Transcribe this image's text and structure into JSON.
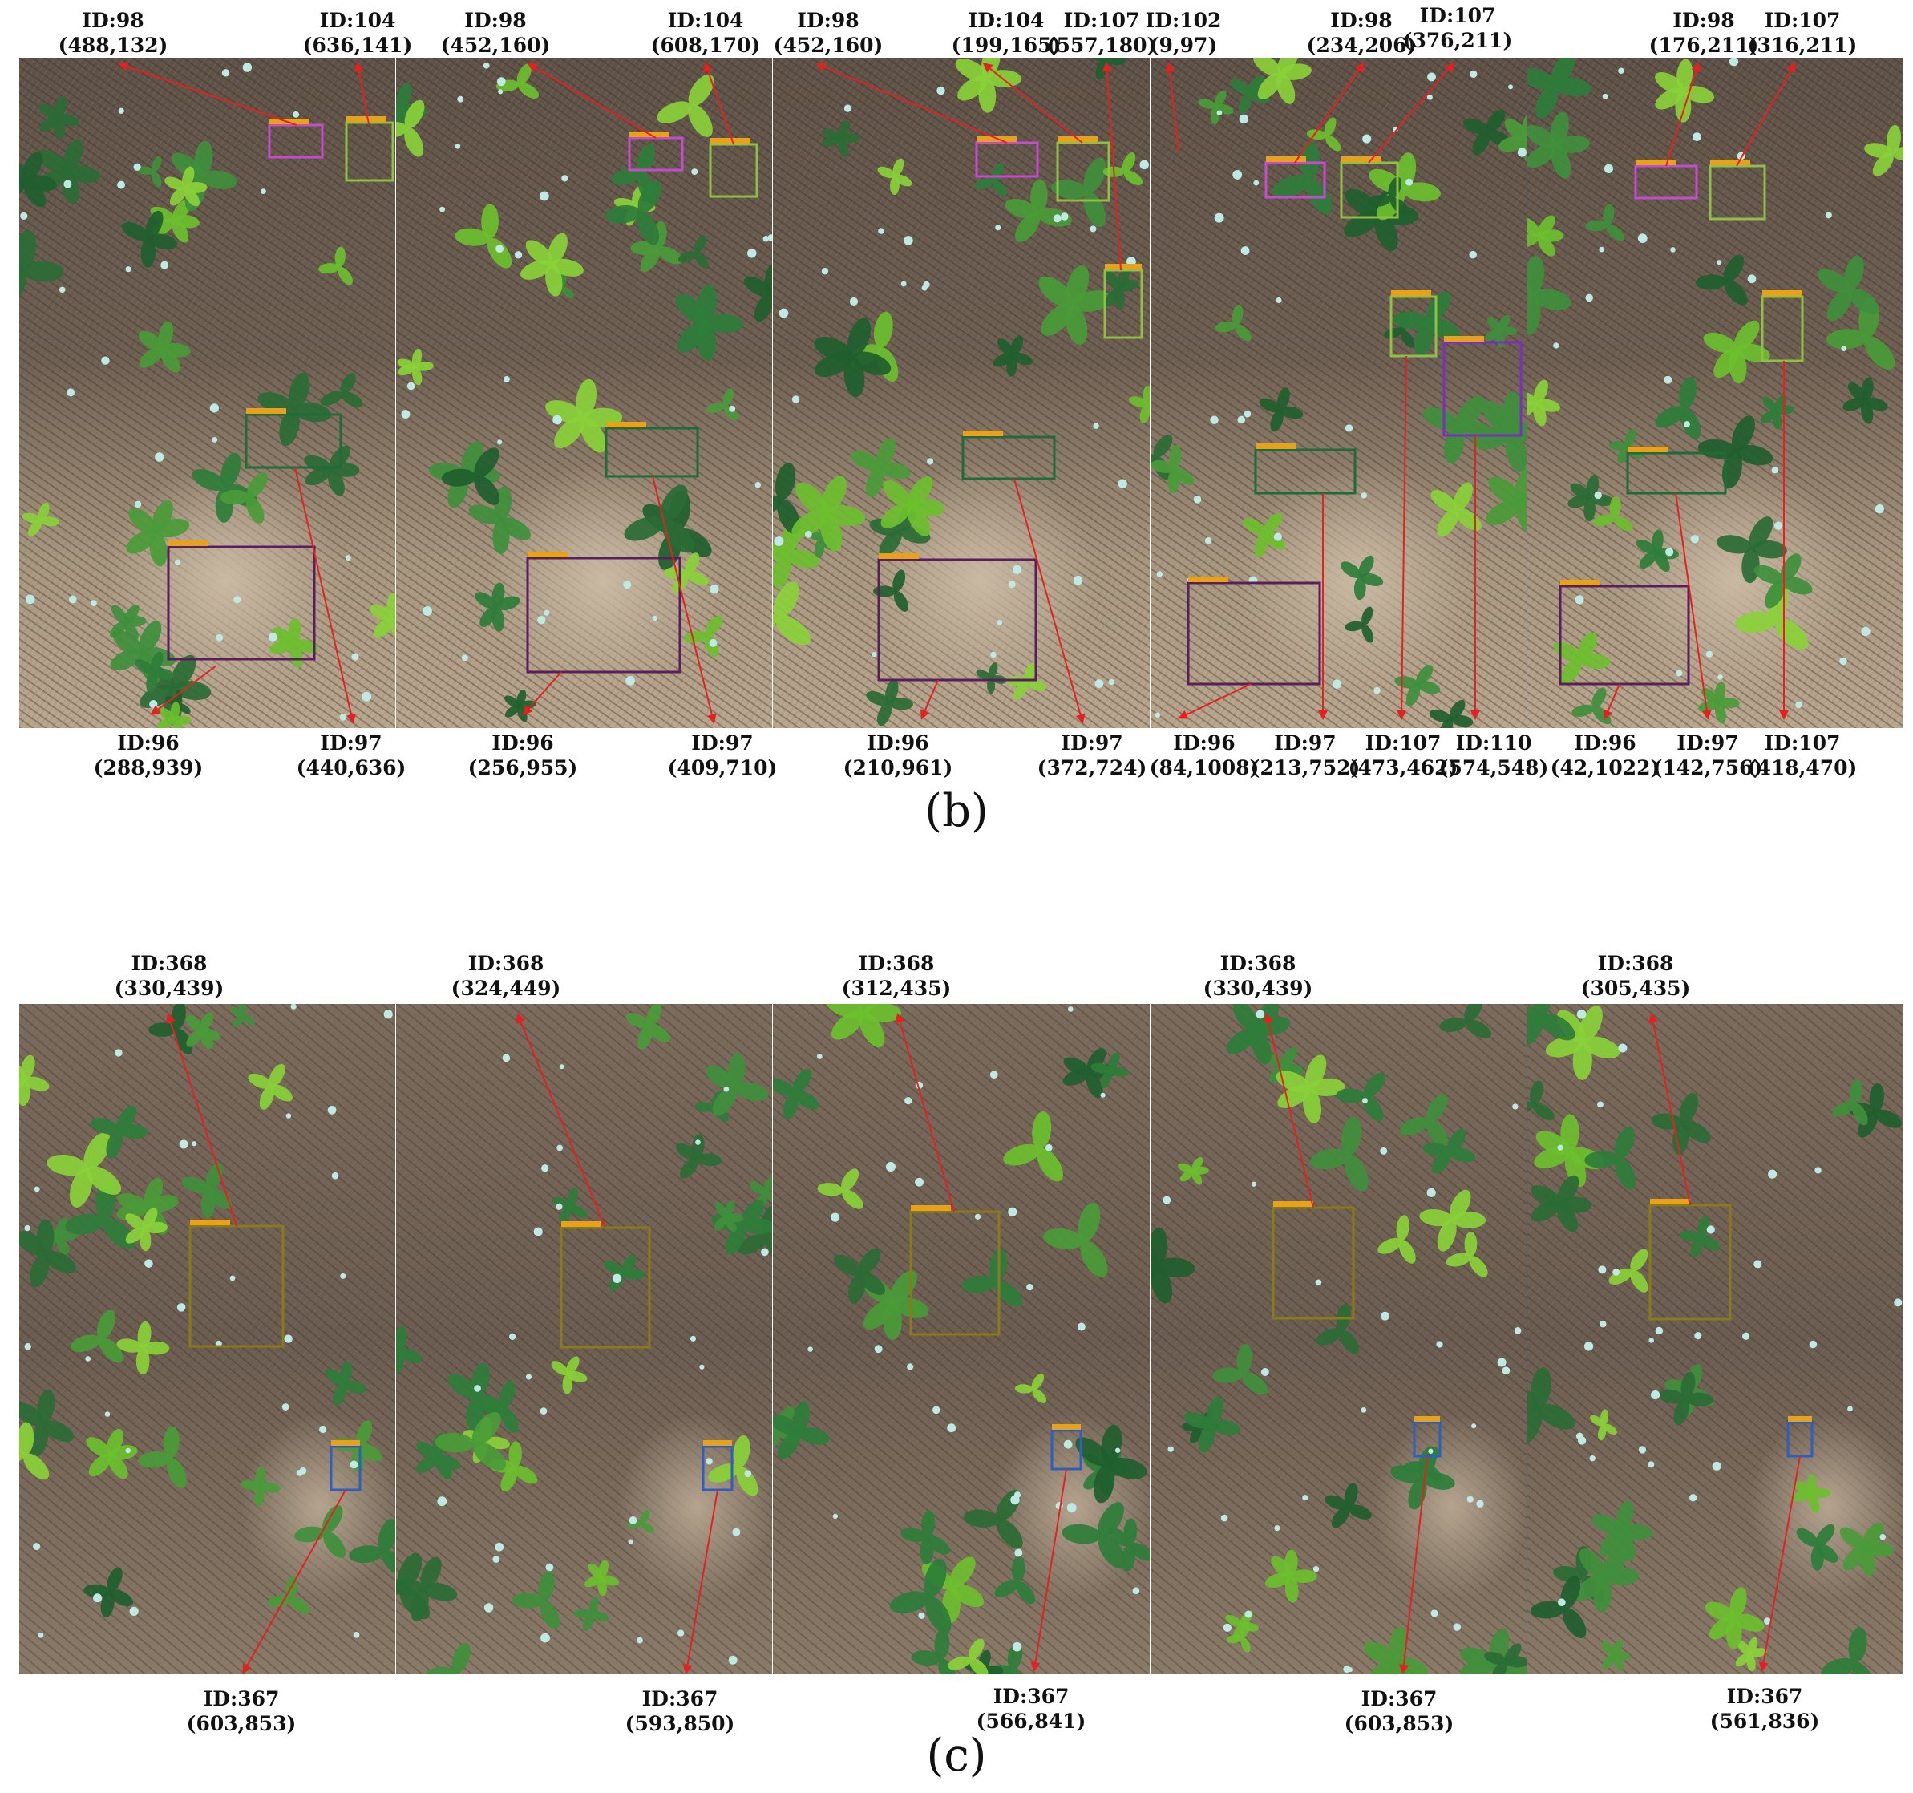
{
  "captions": {
    "b": "(b)",
    "c": "(c)"
  },
  "colors": {
    "arrow": "#e52020",
    "box_magenta": "#c64bd1",
    "box_lightgreen": "#8fbf44",
    "box_darkgreen": "#1f6b3a",
    "box_purple": "#5a1e5e",
    "box_violet": "#7a2fc0",
    "box_olive": "#8a7a18",
    "box_blue": "#2c5fbf"
  },
  "panel_b": {
    "frames": [
      {
        "labels_top": [
          {
            "id": "ID:98",
            "coord": "(488,132)"
          },
          {
            "id": "ID:104",
            "coord": "(636,141)"
          }
        ],
        "labels_bottom": [
          {
            "id": "ID:96",
            "coord": "(288,939)"
          },
          {
            "id": "ID:97",
            "coord": "(440,636)"
          }
        ]
      },
      {
        "labels_top": [
          {
            "id": "ID:98",
            "coord": "(452,160)"
          },
          {
            "id": "ID:104",
            "coord": "(608,170)"
          }
        ],
        "labels_bottom": [
          {
            "id": "ID:96",
            "coord": "(256,955)"
          },
          {
            "id": "ID:97",
            "coord": "(409,710)"
          }
        ]
      },
      {
        "labels_top": [
          {
            "id": "ID:98",
            "coord": "(452,160)"
          },
          {
            "id": "ID:104",
            "coord": "(199,165)"
          },
          {
            "id": "ID:107",
            "coord": "(557,180)"
          }
        ],
        "labels_bottom": [
          {
            "id": "ID:96",
            "coord": "(210,961)"
          },
          {
            "id": "ID:97",
            "coord": "(372,724)"
          }
        ]
      },
      {
        "labels_top": [
          {
            "id": "ID:102",
            "coord": "(9,97)"
          },
          {
            "id": "ID:98",
            "coord": "(234,206)"
          },
          {
            "id": "ID:107",
            "coord": "(376,211)"
          }
        ],
        "labels_bottom": [
          {
            "id": "ID:96",
            "coord": "(84,1008)"
          },
          {
            "id": "ID:97",
            "coord": "(213,752)"
          },
          {
            "id": "ID:107",
            "coord": "(473,462)"
          },
          {
            "id": "ID:110",
            "coord": "(574,548)"
          }
        ]
      },
      {
        "labels_top": [
          {
            "id": "ID:98",
            "coord": "(176,211)"
          },
          {
            "id": "ID:107",
            "coord": "(316,211)"
          }
        ],
        "labels_bottom": [
          {
            "id": "ID:96",
            "coord": "(42,1022)"
          },
          {
            "id": "ID:97",
            "coord": "(142,756)"
          },
          {
            "id": "ID:107",
            "coord": "(418,470)"
          }
        ]
      }
    ]
  },
  "panel_c": {
    "frames": [
      {
        "top": {
          "id": "ID:368",
          "coord": "(330,439)"
        },
        "bottom": {
          "id": "ID:367",
          "coord": "(603,853)"
        }
      },
      {
        "top": {
          "id": "ID:368",
          "coord": "(324,449)"
        },
        "bottom": {
          "id": "ID:367",
          "coord": "(593,850)"
        }
      },
      {
        "top": {
          "id": "ID:368",
          "coord": "(312,435)"
        },
        "bottom": {
          "id": "ID:367",
          "coord": "(566,841)"
        }
      },
      {
        "top": {
          "id": "ID:368",
          "coord": "(330,439)"
        },
        "bottom": {
          "id": "ID:367",
          "coord": "(603,853)"
        }
      },
      {
        "top": {
          "id": "ID:368",
          "coord": "(305,435)"
        },
        "bottom": {
          "id": "ID:367",
          "coord": "(561,836)"
        }
      }
    ]
  }
}
